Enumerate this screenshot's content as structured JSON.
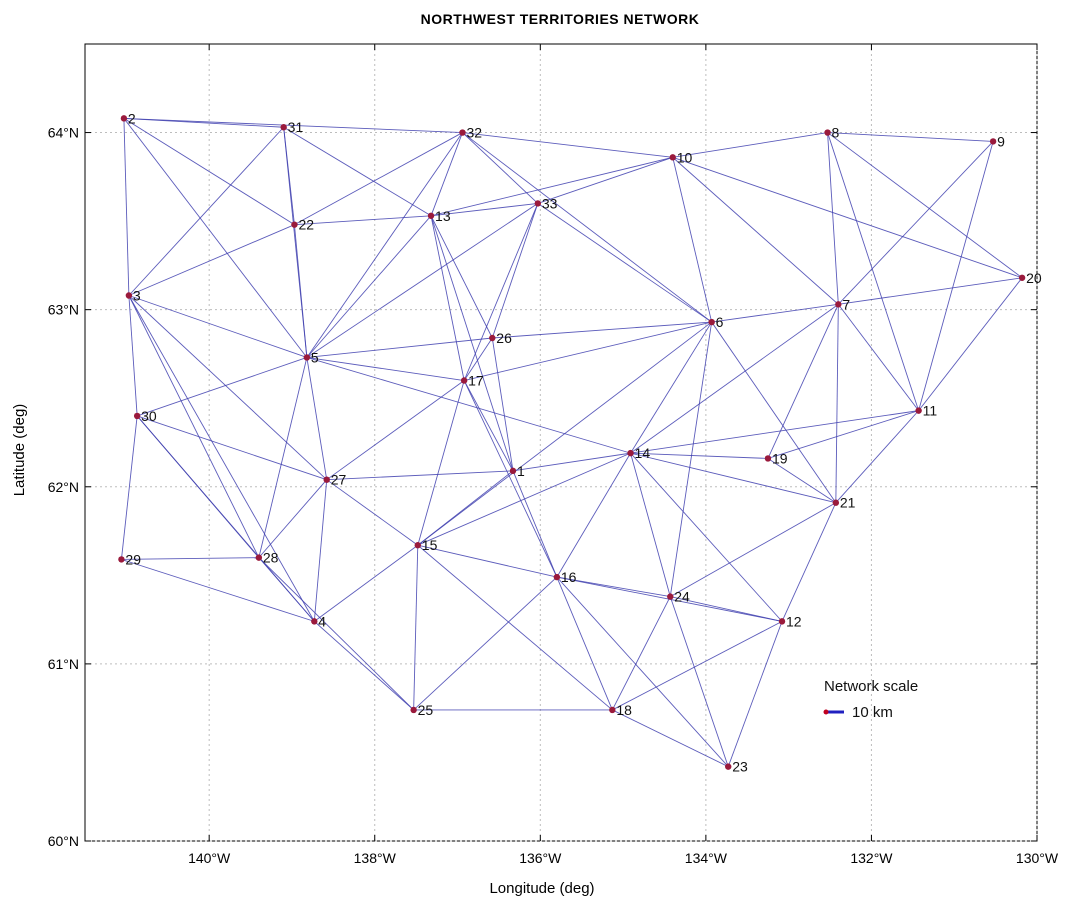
{
  "chart_data": {
    "type": "network",
    "title": "NORTHWEST TERRITORIES NETWORK",
    "xlabel": "Longitude (deg)",
    "ylabel": "Latitude (deg)",
    "xlim": [
      -141.5,
      -130
    ],
    "ylim": [
      60,
      64.5
    ],
    "grid": true,
    "x_ticks": [
      {
        "value": -140,
        "label": "140°W"
      },
      {
        "value": -138,
        "label": "138°W"
      },
      {
        "value": -136,
        "label": "136°W"
      },
      {
        "value": -134,
        "label": "134°W"
      },
      {
        "value": -132,
        "label": "132°W"
      },
      {
        "value": -130,
        "label": "130°W"
      }
    ],
    "y_ticks": [
      {
        "value": 60,
        "label": "60°N"
      },
      {
        "value": 61,
        "label": "61°N"
      },
      {
        "value": 62,
        "label": "62°N"
      },
      {
        "value": 63,
        "label": "63°N"
      },
      {
        "value": 64,
        "label": "64°N"
      }
    ],
    "nodes": [
      {
        "id": "2",
        "lon": -141.03,
        "lat": 64.08
      },
      {
        "id": "31",
        "lon": -139.1,
        "lat": 64.03
      },
      {
        "id": "32",
        "lon": -136.94,
        "lat": 64.0
      },
      {
        "id": "8",
        "lon": -132.53,
        "lat": 64.0
      },
      {
        "id": "9",
        "lon": -130.53,
        "lat": 63.95
      },
      {
        "id": "10",
        "lon": -134.4,
        "lat": 63.86
      },
      {
        "id": "33",
        "lon": -136.03,
        "lat": 63.6
      },
      {
        "id": "13",
        "lon": -137.32,
        "lat": 63.53
      },
      {
        "id": "22",
        "lon": -138.97,
        "lat": 63.48
      },
      {
        "id": "3",
        "lon": -140.97,
        "lat": 63.08
      },
      {
        "id": "20",
        "lon": -130.18,
        "lat": 63.18
      },
      {
        "id": "7",
        "lon": -132.4,
        "lat": 63.03
      },
      {
        "id": "6",
        "lon": -133.93,
        "lat": 62.93
      },
      {
        "id": "26",
        "lon": -136.58,
        "lat": 62.84
      },
      {
        "id": "5",
        "lon": -138.82,
        "lat": 62.73
      },
      {
        "id": "17",
        "lon": -136.92,
        "lat": 62.6
      },
      {
        "id": "11",
        "lon": -131.43,
        "lat": 62.43
      },
      {
        "id": "30",
        "lon": -140.87,
        "lat": 62.4
      },
      {
        "id": "14",
        "lon": -134.91,
        "lat": 62.19
      },
      {
        "id": "19",
        "lon": -133.25,
        "lat": 62.16
      },
      {
        "id": "1",
        "lon": -136.33,
        "lat": 62.09
      },
      {
        "id": "27",
        "lon": -138.58,
        "lat": 62.04
      },
      {
        "id": "21",
        "lon": -132.43,
        "lat": 61.91
      },
      {
        "id": "15",
        "lon": -137.48,
        "lat": 61.67
      },
      {
        "id": "29",
        "lon": -141.06,
        "lat": 61.59
      },
      {
        "id": "28",
        "lon": -139.4,
        "lat": 61.6
      },
      {
        "id": "16",
        "lon": -135.8,
        "lat": 61.49
      },
      {
        "id": "24",
        "lon": -134.43,
        "lat": 61.38
      },
      {
        "id": "4",
        "lon": -138.73,
        "lat": 61.24
      },
      {
        "id": "12",
        "lon": -133.08,
        "lat": 61.24
      },
      {
        "id": "25",
        "lon": -137.53,
        "lat": 60.74
      },
      {
        "id": "18",
        "lon": -135.13,
        "lat": 60.74
      },
      {
        "id": "23",
        "lon": -133.73,
        "lat": 60.42
      }
    ],
    "edges": [
      [
        "2",
        "31"
      ],
      [
        "2",
        "32"
      ],
      [
        "2",
        "3"
      ],
      [
        "2",
        "22"
      ],
      [
        "2",
        "5"
      ],
      [
        "31",
        "22"
      ],
      [
        "31",
        "13"
      ],
      [
        "31",
        "3"
      ],
      [
        "31",
        "5"
      ],
      [
        "32",
        "10"
      ],
      [
        "32",
        "33"
      ],
      [
        "32",
        "22"
      ],
      [
        "32",
        "13"
      ],
      [
        "32",
        "5"
      ],
      [
        "32",
        "6"
      ],
      [
        "10",
        "8"
      ],
      [
        "10",
        "13"
      ],
      [
        "10",
        "33"
      ],
      [
        "10",
        "6"
      ],
      [
        "10",
        "7"
      ],
      [
        "10",
        "20"
      ],
      [
        "8",
        "9"
      ],
      [
        "8",
        "7"
      ],
      [
        "8",
        "11"
      ],
      [
        "8",
        "20"
      ],
      [
        "9",
        "7"
      ],
      [
        "9",
        "11"
      ],
      [
        "33",
        "13"
      ],
      [
        "33",
        "5"
      ],
      [
        "33",
        "6"
      ],
      [
        "33",
        "26"
      ],
      [
        "33",
        "17"
      ],
      [
        "13",
        "22"
      ],
      [
        "13",
        "26"
      ],
      [
        "13",
        "17"
      ],
      [
        "13",
        "5"
      ],
      [
        "13",
        "1"
      ],
      [
        "22",
        "3"
      ],
      [
        "22",
        "5"
      ],
      [
        "3",
        "5"
      ],
      [
        "3",
        "30"
      ],
      [
        "3",
        "28"
      ],
      [
        "3",
        "4"
      ],
      [
        "3",
        "27"
      ],
      [
        "20",
        "7"
      ],
      [
        "20",
        "11"
      ],
      [
        "7",
        "6"
      ],
      [
        "7",
        "11"
      ],
      [
        "7",
        "19"
      ],
      [
        "7",
        "21"
      ],
      [
        "7",
        "14"
      ],
      [
        "6",
        "26"
      ],
      [
        "6",
        "14"
      ],
      [
        "6",
        "21"
      ],
      [
        "6",
        "15"
      ],
      [
        "6",
        "24"
      ],
      [
        "26",
        "5"
      ],
      [
        "26",
        "17"
      ],
      [
        "26",
        "1"
      ],
      [
        "5",
        "17"
      ],
      [
        "5",
        "30"
      ],
      [
        "5",
        "27"
      ],
      [
        "5",
        "28"
      ],
      [
        "5",
        "14"
      ],
      [
        "17",
        "15"
      ],
      [
        "17",
        "16"
      ],
      [
        "17",
        "27"
      ],
      [
        "17",
        "1"
      ],
      [
        "17",
        "6"
      ],
      [
        "11",
        "14"
      ],
      [
        "11",
        "21"
      ],
      [
        "11",
        "19"
      ],
      [
        "30",
        "29"
      ],
      [
        "30",
        "28"
      ],
      [
        "30",
        "4"
      ],
      [
        "30",
        "27"
      ],
      [
        "14",
        "19"
      ],
      [
        "14",
        "21"
      ],
      [
        "14",
        "15"
      ],
      [
        "14",
        "16"
      ],
      [
        "14",
        "24"
      ],
      [
        "14",
        "12"
      ],
      [
        "14",
        "1"
      ],
      [
        "19",
        "21"
      ],
      [
        "1",
        "27"
      ],
      [
        "1",
        "16"
      ],
      [
        "1",
        "15"
      ],
      [
        "27",
        "28"
      ],
      [
        "27",
        "4"
      ],
      [
        "27",
        "15"
      ],
      [
        "21",
        "12"
      ],
      [
        "21",
        "24"
      ],
      [
        "15",
        "25"
      ],
      [
        "15",
        "16"
      ],
      [
        "15",
        "4"
      ],
      [
        "15",
        "18"
      ],
      [
        "29",
        "28"
      ],
      [
        "29",
        "4"
      ],
      [
        "28",
        "4"
      ],
      [
        "28",
        "25"
      ],
      [
        "16",
        "24"
      ],
      [
        "16",
        "18"
      ],
      [
        "16",
        "25"
      ],
      [
        "16",
        "23"
      ],
      [
        "16",
        "12"
      ],
      [
        "24",
        "12"
      ],
      [
        "24",
        "18"
      ],
      [
        "24",
        "23"
      ],
      [
        "4",
        "25"
      ],
      [
        "12",
        "18"
      ],
      [
        "12",
        "23"
      ],
      [
        "25",
        "18"
      ],
      [
        "18",
        "23"
      ]
    ],
    "legend": {
      "position": "bottom-right",
      "title": "Network scale",
      "entry": "10 km",
      "scale_km": 10
    },
    "colors": {
      "edge": "#3f3faf",
      "node": "#9a1a3c",
      "grid": "#bdbdbd",
      "legend_bar": "#2020c0",
      "legend_dot": "#c00020"
    }
  }
}
